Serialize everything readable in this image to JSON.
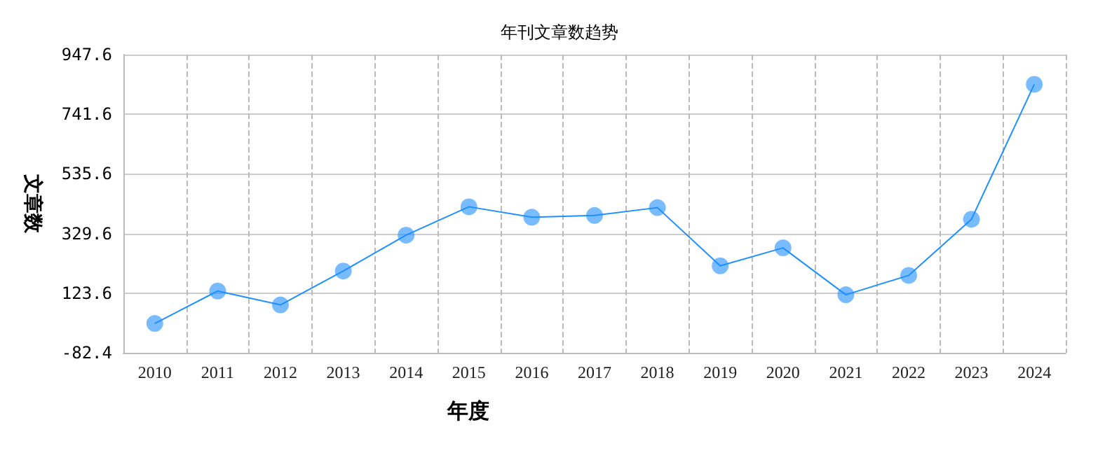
{
  "chart_data": {
    "type": "line",
    "title": "年刊文章数趋势",
    "xlabel": "年度",
    "ylabel": "文章数",
    "categories": [
      "2010",
      "2011",
      "2012",
      "2013",
      "2014",
      "2015",
      "2016",
      "2017",
      "2018",
      "2019",
      "2020",
      "2021",
      "2022",
      "2023",
      "2024"
    ],
    "series": [
      {
        "color": "#1e90ff",
        "values": [
          19,
          131,
          83,
          200,
          324,
          422,
          386,
          392,
          419,
          218,
          280,
          118,
          185,
          379,
          845
        ]
      }
    ],
    "ylim": [
      -82.4,
      947.6
    ],
    "yticks": [
      -82.4,
      123.6,
      329.6,
      535.6,
      741.6,
      947.6
    ],
    "grid": true,
    "marker": "circle",
    "line_style": "solid"
  }
}
